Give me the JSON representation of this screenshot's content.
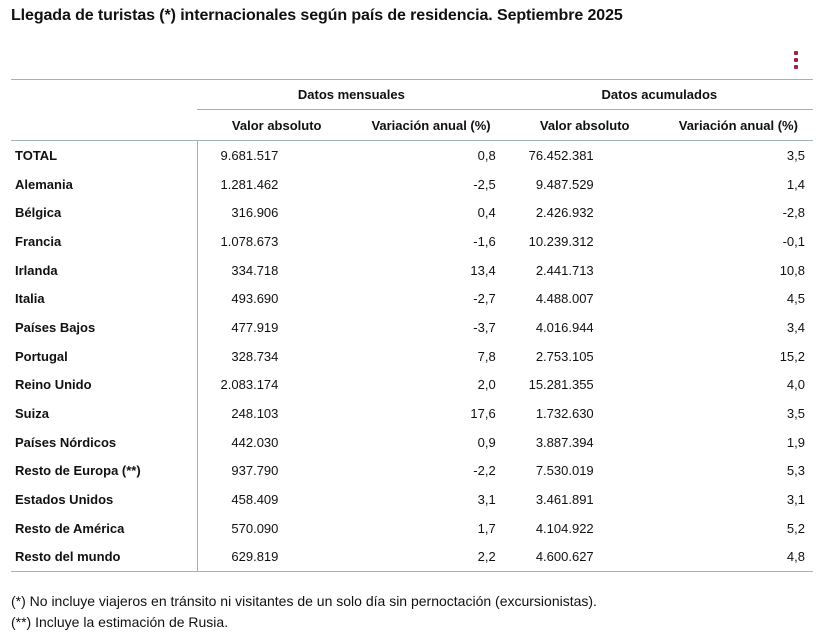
{
  "title": "Llegada de turistas (*) internacionales según país de residencia. Septiembre 2025",
  "menu_icon": "vertical-dots-icon",
  "accent_color": "#a0243f",
  "table": {
    "groups": [
      "Datos mensuales",
      "Datos acumulados"
    ],
    "subheaders": [
      "Valor absoluto",
      "Variación anual (%)",
      "Valor absoluto",
      "Variación anual (%)"
    ],
    "rows": [
      [
        "TOTAL",
        "9.681.517",
        "0,8",
        "76.452.381",
        "3,5"
      ],
      [
        "Alemania",
        "1.281.462",
        "-2,5",
        "9.487.529",
        "1,4"
      ],
      [
        "Bélgica",
        "316.906",
        "0,4",
        "2.426.932",
        "-2,8"
      ],
      [
        "Francia",
        "1.078.673",
        "-1,6",
        "10.239.312",
        "-0,1"
      ],
      [
        "Irlanda",
        "334.718",
        "13,4",
        "2.441.713",
        "10,8"
      ],
      [
        "Italia",
        "493.690",
        "-2,7",
        "4.488.007",
        "4,5"
      ],
      [
        "Países Bajos",
        "477.919",
        "-3,7",
        "4.016.944",
        "3,4"
      ],
      [
        "Portugal",
        "328.734",
        "7,8",
        "2.753.105",
        "15,2"
      ],
      [
        "Reino Unido",
        "2.083.174",
        "2,0",
        "15.281.355",
        "4,0"
      ],
      [
        "Suiza",
        "248.103",
        "17,6",
        "1.732.630",
        "3,5"
      ],
      [
        "Países Nórdicos",
        "442.030",
        "0,9",
        "3.887.394",
        "1,9"
      ],
      [
        "Resto de Europa (**)",
        "937.790",
        "-2,2",
        "7.530.019",
        "5,3"
      ],
      [
        "Estados Unidos",
        "458.409",
        "3,1",
        "3.461.891",
        "3,1"
      ],
      [
        "Resto de América",
        "570.090",
        "1,7",
        "4.104.922",
        "5,2"
      ],
      [
        "Resto del mundo",
        "629.819",
        "2,2",
        "4.600.627",
        "4,8"
      ]
    ]
  },
  "notes": [
    "(*) No incluye viajeros en tránsito ni visitantes de un solo día sin pernoctación (excursionistas).",
    "(**) Incluye la estimación de Rusia."
  ]
}
